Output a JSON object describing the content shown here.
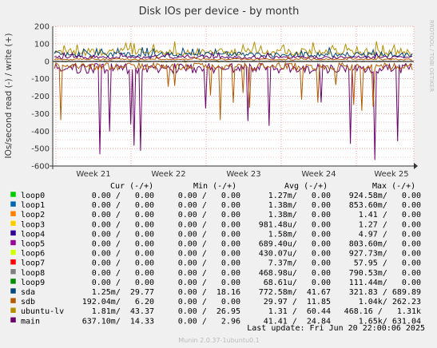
{
  "title": "Disk IOs per device - by month",
  "ylabel": "IOs/second read (-) / write (+)",
  "side_label": "RRDTOOL / TOBI OETIKER",
  "footer": "Munin 2.0.37-1ubuntu0.1",
  "last_update": "Last update: Fri Jun 20 22:00:06 2025",
  "legend_header": {
    "cur": "Cur (-/+)",
    "min": "Min (-/+)",
    "avg": "Avg (-/+)",
    "max": "Max (-/+)"
  },
  "legend": [
    {
      "name": "loop0",
      "color": "#00cc00",
      "cur": "0.00 /   0.00",
      "min": "0.00 /   0.00",
      "avg": "1.27m/   0.00",
      "max": "924.58m/   0.00"
    },
    {
      "name": "loop1",
      "color": "#0066b3",
      "cur": "0.00 /   0.00",
      "min": "0.00 /   0.00",
      "avg": "1.38m/   0.00",
      "max": "853.60m/   0.00"
    },
    {
      "name": "loop2",
      "color": "#ff8000",
      "cur": "0.00 /   0.00",
      "min": "0.00 /   0.00",
      "avg": "1.38m/   0.00",
      "max": "1.41 /   0.00"
    },
    {
      "name": "loop3",
      "color": "#ffcc00",
      "cur": "0.00 /   0.00",
      "min": "0.00 /   0.00",
      "avg": "981.48u/   0.00",
      "max": "1.27 /   0.00"
    },
    {
      "name": "loop4",
      "color": "#330099",
      "cur": "0.00 /   0.00",
      "min": "0.00 /   0.00",
      "avg": "1.58m/   0.00",
      "max": "4.97 /   0.00"
    },
    {
      "name": "loop5",
      "color": "#990099",
      "cur": "0.00 /   0.00",
      "min": "0.00 /   0.00",
      "avg": "689.40u/   0.00",
      "max": "803.60m/   0.00"
    },
    {
      "name": "loop6",
      "color": "#ccff00",
      "cur": "0.00 /   0.00",
      "min": "0.00 /   0.00",
      "avg": "430.07u/   0.00",
      "max": "927.73m/   0.00"
    },
    {
      "name": "loop7",
      "color": "#ff0000",
      "cur": "0.00 /   0.00",
      "min": "0.00 /   0.00",
      "avg": "7.37m/   0.00",
      "max": "57.95 /   0.00"
    },
    {
      "name": "loop8",
      "color": "#808080",
      "cur": "0.00 /   0.00",
      "min": "0.00 /   0.00",
      "avg": "468.98u/   0.00",
      "max": "790.53m/   0.00"
    },
    {
      "name": "loop9",
      "color": "#008f00",
      "cur": "0.00 /   0.00",
      "min": "0.00 /   0.00",
      "avg": "68.61u/   0.00",
      "max": "111.44m/   0.00"
    },
    {
      "name": "sda",
      "color": "#00487d",
      "cur": "1.25m/  29.77",
      "min": "0.00 /  18.16",
      "avg": "772.58m/  41.67",
      "max": "321.83 / 689.89"
    },
    {
      "name": "sdb",
      "color": "#b35a00",
      "cur": "192.04m/   6.20",
      "min": "0.00 /   0.00",
      "avg": "29.97 /  11.85",
      "max": "1.04k/ 262.23"
    },
    {
      "name": "ubuntu-lv",
      "color": "#b38f00",
      "cur": "1.81m/  43.37",
      "min": "0.00 /  26.95",
      "avg": "1.31 /  60.44",
      "max": "468.16 /   1.31k"
    },
    {
      "name": "main",
      "color": "#6b006b",
      "cur": "637.10m/  14.33",
      "min": "0.00 /   2.96",
      "avg": "41.41 /  24.84",
      "max": "1.65k/ 631.04"
    }
  ],
  "chart_data": {
    "type": "line",
    "title": "Disk IOs per device - by month",
    "ylabel": "IOs/second read (-) / write (+)",
    "ylim": [
      -600,
      200
    ],
    "yticks": [
      -600,
      -500,
      -400,
      -300,
      -200,
      -100,
      0,
      100,
      200
    ],
    "xtick_labels": [
      "Week 21",
      "Week 22",
      "Week 23",
      "Week 24",
      "Week 25"
    ],
    "grid": true,
    "series": [
      {
        "name": "ubuntu-lv",
        "color": "#b38f00",
        "write_level": 60,
        "write_peak": 120,
        "read_level": -1,
        "read_peak": -5
      },
      {
        "name": "sda",
        "color": "#00487d",
        "write_level": 42,
        "write_peak": 80,
        "read_level": -1,
        "read_peak": -5
      },
      {
        "name": "main",
        "color": "#6b006b",
        "write_level": 25,
        "write_peak": 50,
        "read_level": -41,
        "read_peak": -580
      },
      {
        "name": "sdb",
        "color": "#b35a00",
        "write_level": 12,
        "write_peak": 30,
        "read_level": -30,
        "read_peak": -350
      }
    ]
  }
}
